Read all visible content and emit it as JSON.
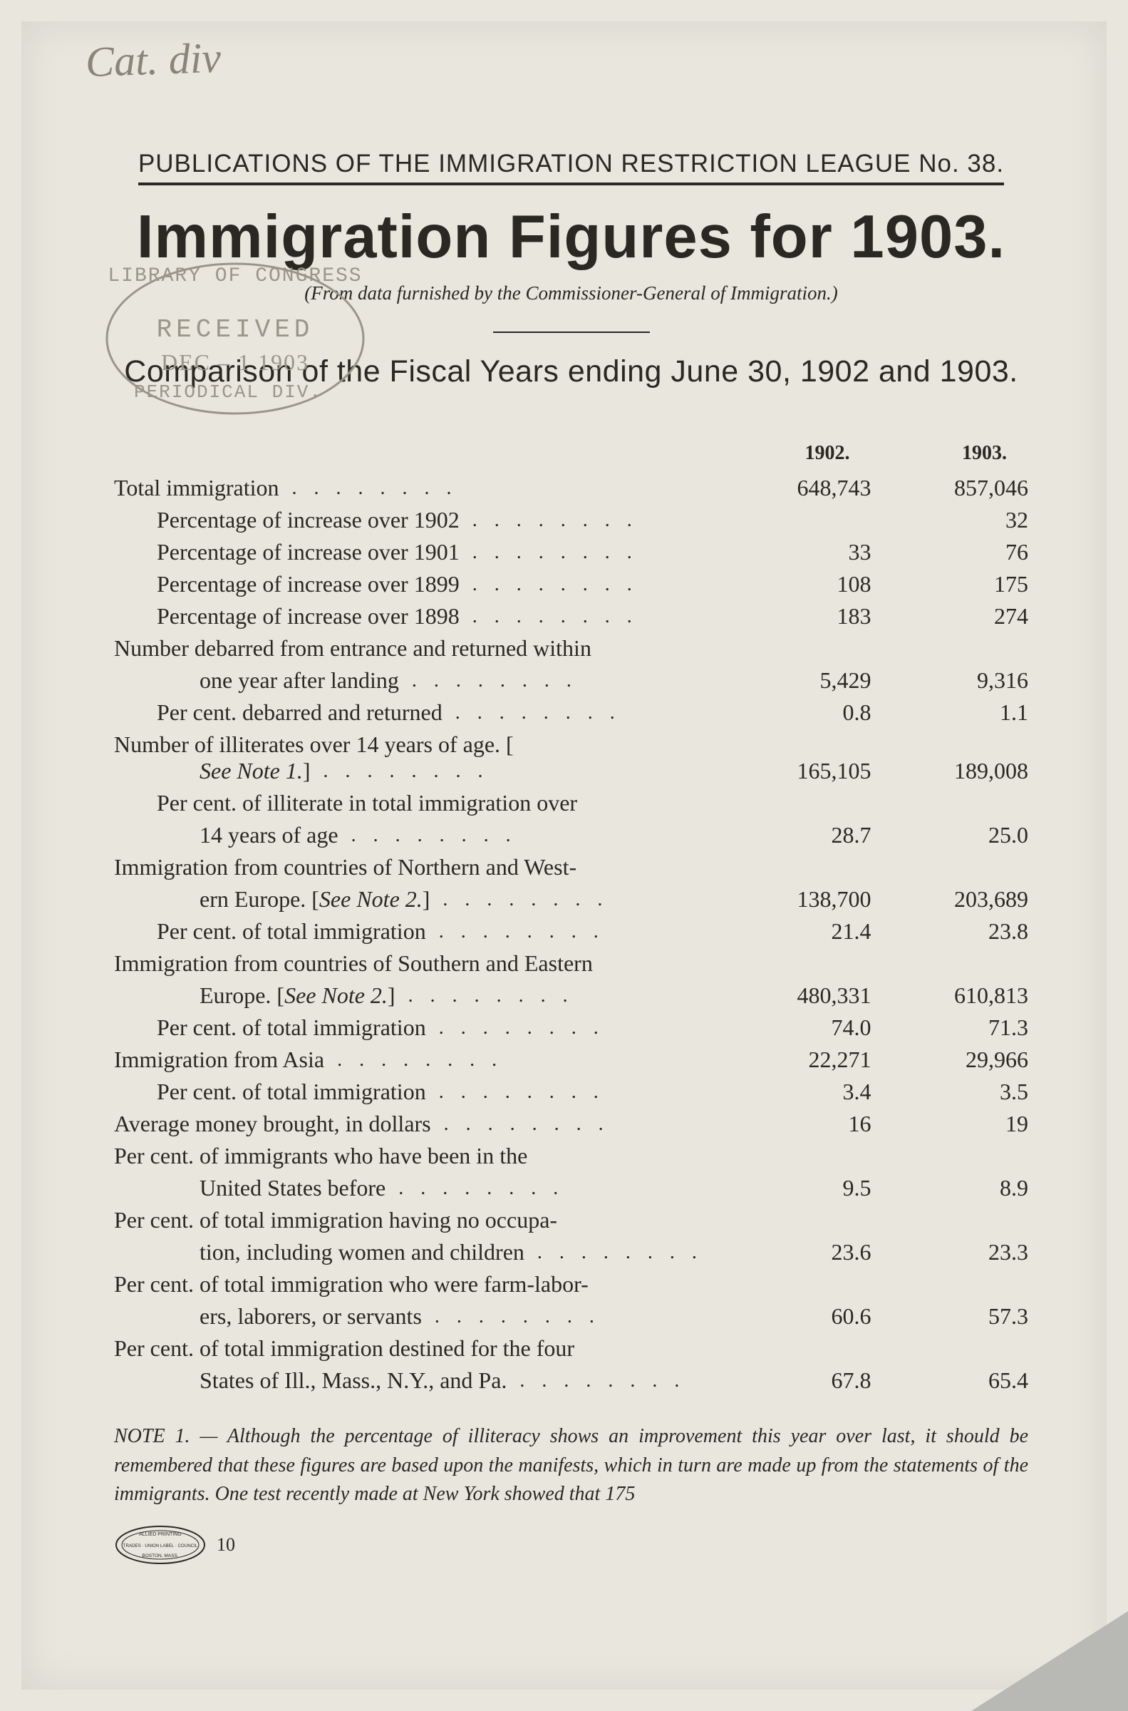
{
  "handwritten": "Cat. div",
  "stamp": {
    "arc_top": "LIBRARY OF CONGRESS",
    "received": "RECEIVED",
    "date": "DEC – 1 1903",
    "arc_bottom": "PERIODICAL DIV."
  },
  "header": {
    "publication_line": "PUBLICATIONS OF THE IMMIGRATION RESTRICTION LEAGUE No. 38.",
    "main_title": "Immigration Figures for 1903.",
    "source_line": "(From data furnished by the Commissioner-General of Immigration.)",
    "comparison_line": "Comparison of the Fiscal Years ending June 30, 1902 and 1903."
  },
  "table": {
    "col_1902": "1902.",
    "col_1903": "1903.",
    "rows": [
      {
        "label": "Total immigration",
        "v1902": "648,743",
        "v1903": "857,046",
        "indent": 0
      },
      {
        "label": "Percentage of increase over 1902",
        "v1902": "",
        "v1903": "32",
        "indent": 1
      },
      {
        "label": "Percentage of increase over 1901",
        "v1902": "33",
        "v1903": "76",
        "indent": 1
      },
      {
        "label": "Percentage of increase over 1899",
        "v1902": "108",
        "v1903": "175",
        "indent": 1
      },
      {
        "label": "Percentage of increase over 1898",
        "v1902": "183",
        "v1903": "274",
        "indent": 1
      },
      {
        "label": "Number debarred from entrance and returned within",
        "v1902": "",
        "v1903": "",
        "indent": 0,
        "nodots": true
      },
      {
        "label": "one year after landing",
        "v1902": "5,429",
        "v1903": "9,316",
        "indent": 2
      },
      {
        "label": "Per cent. debarred and returned",
        "v1902": "0.8",
        "v1903": "1.1",
        "indent": 1
      },
      {
        "label": "Number of illiterates over 14 years of age.  [",
        "note": "See Note 1.",
        "label2": "]",
        "v1902": "165,105",
        "v1903": "189,008",
        "indent": 0,
        "twoline": true
      },
      {
        "label": "Per cent. of illiterate in total immigration over",
        "v1902": "",
        "v1903": "",
        "indent": 1,
        "nodots": true
      },
      {
        "label": "14 years of age",
        "v1902": "28.7",
        "v1903": "25.0",
        "indent": 2
      },
      {
        "label": "Immigration from countries of Northern and West-",
        "v1902": "",
        "v1903": "",
        "indent": 0,
        "nodots": true
      },
      {
        "label": "ern Europe.  [",
        "note": "See Note 2.",
        "label2": "]",
        "v1902": "138,700",
        "v1903": "203,689",
        "indent": 2
      },
      {
        "label": "Per cent. of total immigration",
        "v1902": "21.4",
        "v1903": "23.8",
        "indent": 1
      },
      {
        "label": "Immigration from countries of Southern and Eastern",
        "v1902": "",
        "v1903": "",
        "indent": 0,
        "nodots": true
      },
      {
        "label": "Europe.  [",
        "note": "See Note 2.",
        "label2": "]",
        "v1902": "480,331",
        "v1903": "610,813",
        "indent": 2
      },
      {
        "label": "Per cent. of total immigration",
        "v1902": "74.0",
        "v1903": "71.3",
        "indent": 1
      },
      {
        "label": "Immigration from Asia",
        "v1902": "22,271",
        "v1903": "29,966",
        "indent": 0
      },
      {
        "label": "Per cent. of total immigration",
        "v1902": "3.4",
        "v1903": "3.5",
        "indent": 1
      },
      {
        "label": "Average money brought, in dollars",
        "v1902": "16",
        "v1903": "19",
        "indent": 0
      },
      {
        "label": "Per cent. of immigrants who have been in the",
        "v1902": "",
        "v1903": "",
        "indent": 0,
        "nodots": true
      },
      {
        "label": "United States before",
        "v1902": "9.5",
        "v1903": "8.9",
        "indent": 2
      },
      {
        "label": "Per cent. of total immigration having no occupa-",
        "v1902": "",
        "v1903": "",
        "indent": 0,
        "nodots": true
      },
      {
        "label": "tion, including women and children",
        "v1902": "23.6",
        "v1903": "23.3",
        "indent": 2
      },
      {
        "label": "Per cent. of total immigration who were farm-labor-",
        "v1902": "",
        "v1903": "",
        "indent": 0,
        "nodots": true
      },
      {
        "label": "ers, laborers, or servants",
        "v1902": "60.6",
        "v1903": "57.3",
        "indent": 2
      },
      {
        "label": "Per cent. of total immigration destined for the four",
        "v1902": "",
        "v1903": "",
        "indent": 0,
        "nodots": true
      },
      {
        "label": "States of Ill., Mass., N.Y., and Pa.",
        "v1902": "67.8",
        "v1903": "65.4",
        "indent": 2
      }
    ]
  },
  "footnote": {
    "lead": "NOTE 1. —",
    "text": "Although the percentage of illiteracy shows an improvement this year over last, it should be remembered that these figures are based upon the manifests, which in turn are made up from the statements of the immigrants. One test recently made at New York showed that 175"
  },
  "union_label": {
    "top": "ALLIED PRINTING",
    "mid": "TRADES · UNION LABEL · COUNCIL",
    "bottom": "BOSTON, MASS."
  },
  "page_number": "10",
  "colors": {
    "paper": "#e8e6dd",
    "ink": "#2a2822",
    "faded": "#9a9588",
    "background": "#b8b8b5"
  }
}
